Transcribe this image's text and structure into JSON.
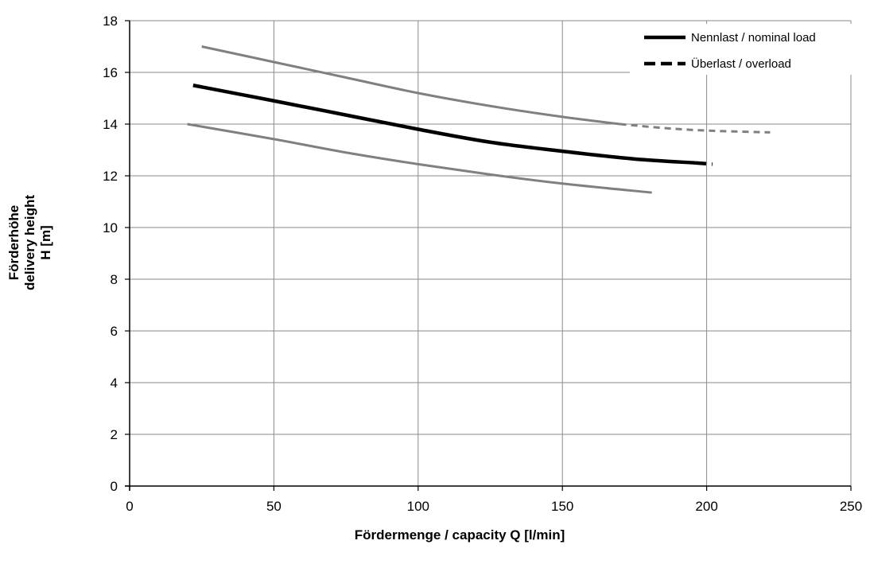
{
  "chart_data": {
    "type": "line",
    "xlabel": "Fördermenge / capacity  Q [l/min]",
    "ylabel_lines": [
      "Förderhöhe",
      "delivery height",
      "H [m]"
    ],
    "xlim": [
      0,
      250
    ],
    "ylim": [
      0,
      18
    ],
    "xticks": [
      0,
      50,
      100,
      150,
      200,
      250
    ],
    "yticks": [
      0,
      2,
      4,
      6,
      8,
      10,
      12,
      14,
      16,
      18
    ],
    "grid": true,
    "legend_position": "top-right",
    "legend": [
      {
        "label": "Nennlast / nominal load",
        "style": "solid"
      },
      {
        "label": "Überlast / overload",
        "style": "dashed"
      }
    ],
    "series": [
      {
        "style": "solid",
        "color": "#000000",
        "width": 4.5,
        "points": [
          [
            22,
            15.5
          ],
          [
            50,
            14.9
          ],
          [
            75,
            14.35
          ],
          [
            100,
            13.8
          ],
          [
            125,
            13.3
          ],
          [
            150,
            12.95
          ],
          [
            175,
            12.65
          ],
          [
            196,
            12.5
          ]
        ]
      },
      {
        "style": "dashed",
        "color": "#000000",
        "width": 4.5,
        "points": [
          [
            196,
            12.5
          ],
          [
            202,
            12.45
          ]
        ]
      },
      {
        "style": "solid",
        "color": "#808080",
        "width": 3,
        "points": [
          [
            25,
            17.0
          ],
          [
            50,
            16.4
          ],
          [
            75,
            15.8
          ],
          [
            100,
            15.2
          ],
          [
            125,
            14.7
          ],
          [
            150,
            14.28
          ],
          [
            170,
            14.0
          ]
        ]
      },
      {
        "style": "dashed",
        "color": "#808080",
        "width": 3,
        "points": [
          [
            170,
            14.0
          ],
          [
            185,
            13.85
          ],
          [
            200,
            13.75
          ],
          [
            222,
            13.68
          ]
        ]
      },
      {
        "style": "solid",
        "color": "#808080",
        "width": 3,
        "points": [
          [
            20,
            14.0
          ],
          [
            50,
            13.42
          ],
          [
            75,
            12.9
          ],
          [
            100,
            12.45
          ],
          [
            125,
            12.05
          ],
          [
            150,
            11.7
          ],
          [
            181,
            11.35
          ]
        ]
      }
    ]
  }
}
